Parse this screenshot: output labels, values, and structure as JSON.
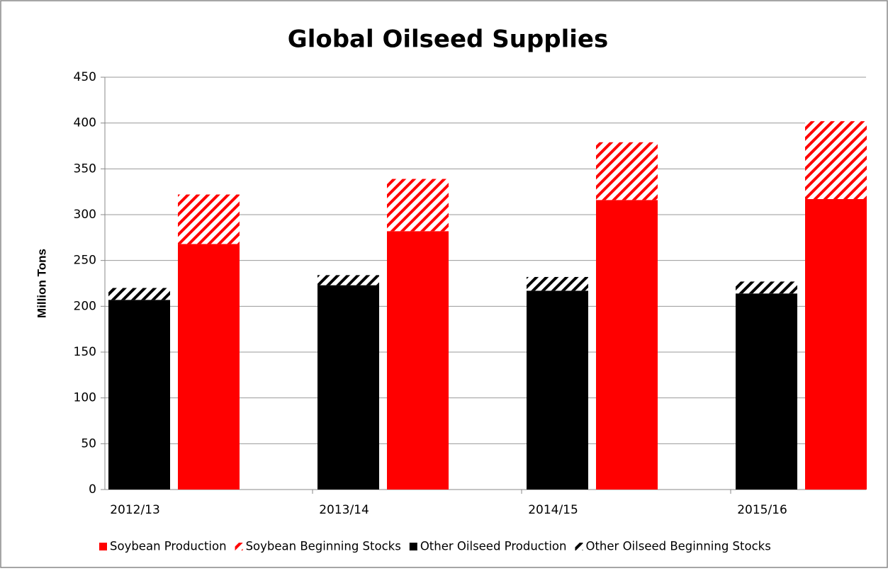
{
  "chart_data": {
    "type": "bar",
    "title": "Global Oilseed Supplies",
    "y_label": "Million Tons",
    "categories": [
      "2012/13",
      "2013/14",
      "2014/15",
      "2015/16"
    ],
    "series": [
      {
        "name": "Soybean Production",
        "color": "#ff0000",
        "values": [
          268,
          282,
          316,
          317
        ]
      },
      {
        "name": "Soybean Beginning Stocks",
        "color": "#ff0000",
        "hatch": true,
        "values": [
          54,
          57,
          63,
          85
        ]
      },
      {
        "name": "Other Oilseed Production",
        "color": "#000000",
        "values": [
          207,
          223,
          217,
          214
        ]
      },
      {
        "name": "Other Oilseed Beginning Stocks",
        "color": "#000000",
        "hatch": true,
        "values": [
          13,
          11,
          15,
          13
        ]
      }
    ],
    "ylim": [
      0,
      450
    ],
    "yticks": [
      0,
      50,
      100,
      150,
      200,
      250,
      300,
      350,
      400,
      450
    ],
    "grid": true,
    "legend": "bottom"
  }
}
